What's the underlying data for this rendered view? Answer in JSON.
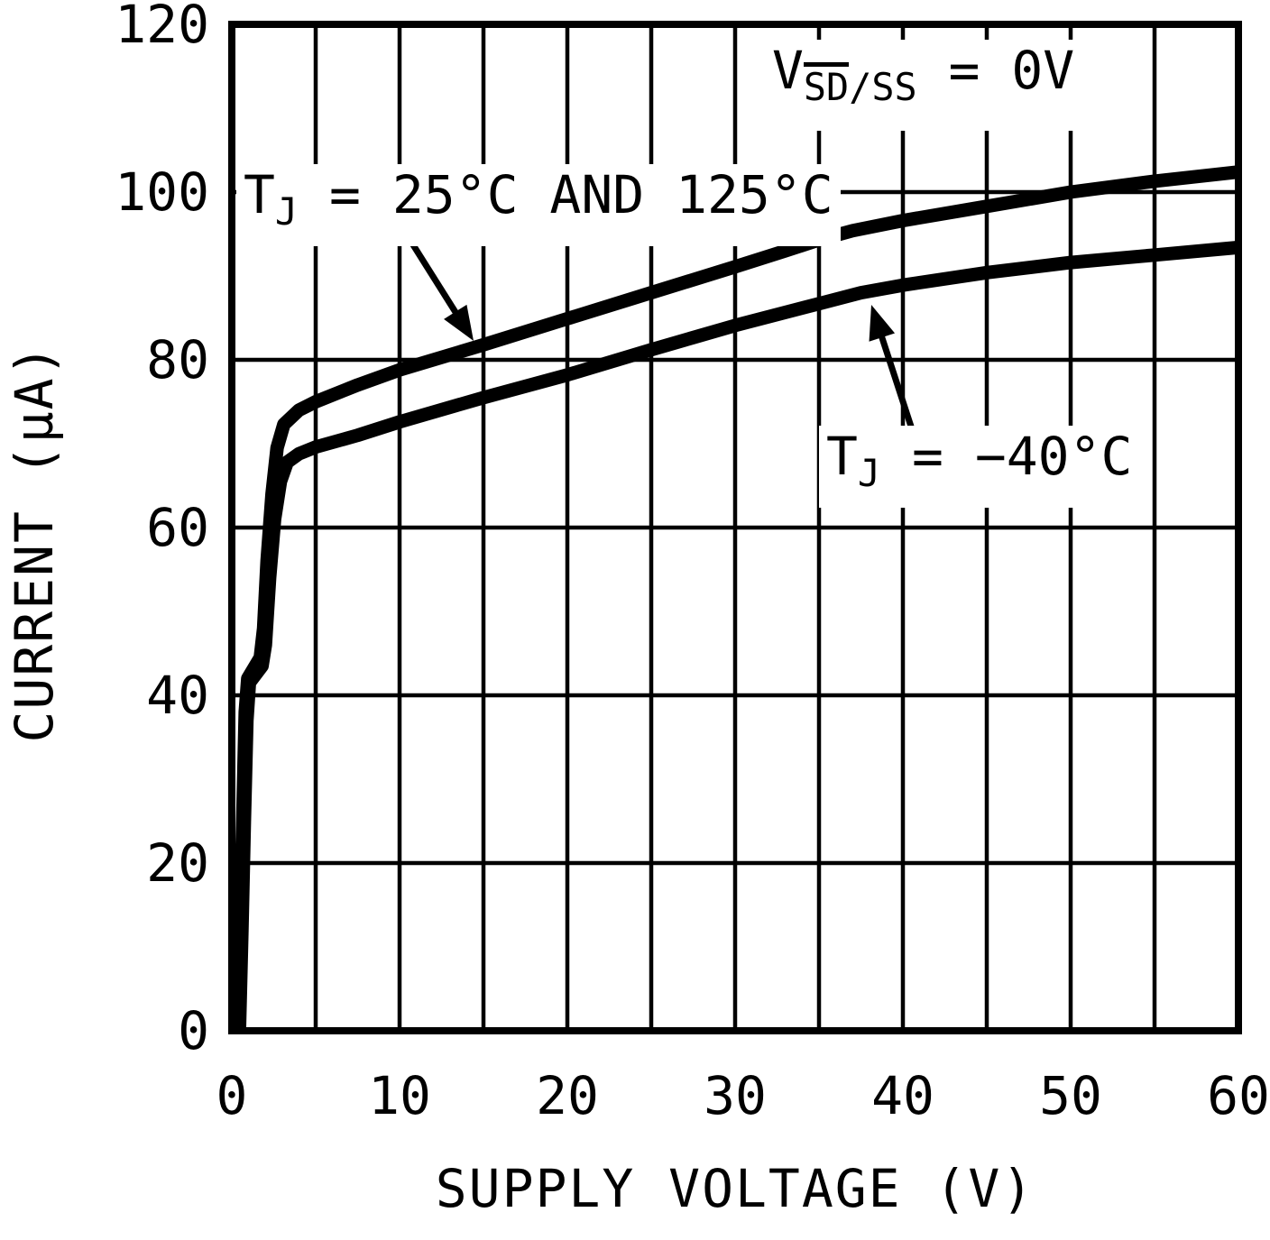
{
  "figure": {
    "background": "#ffffff",
    "ink_color": "#000000"
  },
  "chart_data": {
    "type": "line",
    "title": "",
    "xlabel": "SUPPLY VOLTAGE (V)",
    "ylabel": "CURRENT (µA)",
    "xlim": [
      0,
      60
    ],
    "ylim": [
      0,
      120
    ],
    "x_grid_step": 5,
    "y_grid_step": 20,
    "grid": "on",
    "legend_position": "none",
    "x_tick_values": [
      0,
      10,
      20,
      30,
      40,
      50,
      60
    ],
    "x_tick_labels": [
      "0",
      "10",
      "20",
      "30",
      "40",
      "50",
      "60"
    ],
    "y_tick_values": [
      0,
      20,
      40,
      60,
      80,
      100,
      120
    ],
    "y_tick_labels": [
      "0",
      "20",
      "40",
      "60",
      "80",
      "100",
      "120"
    ],
    "annotations": {
      "condition": {
        "prefix": "V",
        "sub_overline": "SD",
        "sub_rest": "/SS",
        "rest": " = 0V"
      },
      "hot": {
        "prefix": "T",
        "sub": "J",
        "rest": " = 25°C AND 125°C"
      },
      "cold": {
        "prefix": "T",
        "sub": "J",
        "rest": " = −40°C"
      }
    },
    "series": [
      {
        "name": "TJ = 25°C AND 125°C",
        "points": [
          [
            0.35,
            0
          ],
          [
            0.5,
            12
          ],
          [
            0.65,
            25
          ],
          [
            0.8,
            38
          ],
          [
            0.95,
            42
          ],
          [
            1.7,
            44.5
          ],
          [
            1.9,
            48
          ],
          [
            2.1,
            56
          ],
          [
            2.4,
            64
          ],
          [
            2.7,
            69.5
          ],
          [
            3.1,
            72.3
          ],
          [
            4,
            74
          ],
          [
            5,
            75
          ],
          [
            7.5,
            77
          ],
          [
            10,
            78.8
          ],
          [
            15,
            81.8
          ],
          [
            20,
            84.9
          ],
          [
            25,
            88
          ],
          [
            30,
            91.1
          ],
          [
            33,
            93
          ],
          [
            35,
            94.3
          ],
          [
            37,
            95.4
          ],
          [
            40,
            96.6
          ],
          [
            45,
            98.3
          ],
          [
            50,
            100
          ],
          [
            55,
            101.3
          ],
          [
            60,
            102.4
          ]
        ]
      },
      {
        "name": "TJ = −40°C",
        "points": [
          [
            0.45,
            0
          ],
          [
            0.6,
            12
          ],
          [
            0.75,
            25
          ],
          [
            0.9,
            37
          ],
          [
            1.05,
            41.5
          ],
          [
            1.8,
            43.5
          ],
          [
            2.0,
            46
          ],
          [
            2.25,
            54
          ],
          [
            2.55,
            61
          ],
          [
            2.9,
            65.5
          ],
          [
            3.3,
            67.8
          ],
          [
            4,
            68.8
          ],
          [
            5,
            69.6
          ],
          [
            7.5,
            71
          ],
          [
            10,
            72.6
          ],
          [
            15,
            75.5
          ],
          [
            20,
            78.2
          ],
          [
            25,
            81.2
          ],
          [
            30,
            84.1
          ],
          [
            35,
            86.7
          ],
          [
            37.5,
            88
          ],
          [
            40,
            88.9
          ],
          [
            45,
            90.4
          ],
          [
            50,
            91.6
          ],
          [
            55,
            92.5
          ],
          [
            60,
            93.4
          ]
        ]
      }
    ]
  }
}
